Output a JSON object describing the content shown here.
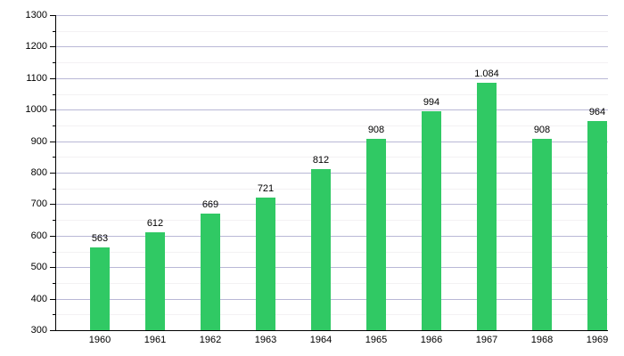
{
  "chart_data": {
    "type": "bar",
    "title": "",
    "xlabel": "",
    "ylabel": "",
    "categories": [
      "1960",
      "1961",
      "1962",
      "1963",
      "1964",
      "1965",
      "1966",
      "1967",
      "1968",
      "1969"
    ],
    "values": [
      563,
      612,
      669,
      721,
      812,
      908,
      994,
      1084,
      908,
      964
    ],
    "value_labels": [
      "563",
      "612",
      "669",
      "721",
      "812",
      "908",
      "994",
      "1.084",
      "908",
      "964"
    ],
    "ylim": [
      300,
      1300
    ],
    "y_major_step": 100,
    "y_minor_step": 50,
    "grid": true,
    "legend_position": "none",
    "bar_color": "#30c964",
    "grid_major_color": "#b9b8d6",
    "grid_minor_color": "#f3f1f3",
    "axis_color": "#000000",
    "text_color": "#000000"
  }
}
